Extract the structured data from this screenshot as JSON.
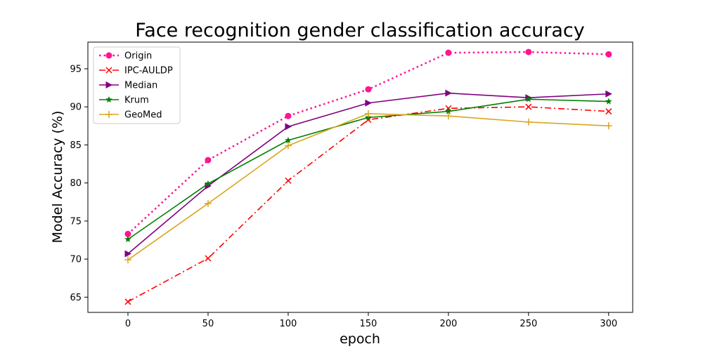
{
  "chart_data": {
    "type": "line",
    "title": "Face recognition gender classification accuracy",
    "xlabel": "epoch",
    "ylabel": "Model Accuracy (%)",
    "x": [
      0,
      50,
      100,
      150,
      200,
      250,
      300
    ],
    "xlim": [
      -25,
      315
    ],
    "ylim": [
      63,
      98.5
    ],
    "xticks": [
      0,
      50,
      100,
      150,
      200,
      250,
      300
    ],
    "yticks": [
      65,
      70,
      75,
      80,
      85,
      90,
      95
    ],
    "grid": false,
    "legend_position": "top-left",
    "series": [
      {
        "name": "Origin",
        "values": [
          73.3,
          83.0,
          88.8,
          92.3,
          97.1,
          97.2,
          96.9
        ],
        "color": "#ff1493",
        "linestyle": "dotted",
        "marker": "circle"
      },
      {
        "name": "IPC-AULDP",
        "values": [
          64.4,
          70.1,
          80.3,
          88.3,
          89.8,
          90.0,
          89.4
        ],
        "color": "#ff0000",
        "linestyle": "dashdot",
        "marker": "x"
      },
      {
        "name": "Median",
        "values": [
          70.7,
          79.6,
          87.4,
          90.5,
          91.8,
          91.2,
          91.7
        ],
        "color": "#800080",
        "linestyle": "solid",
        "marker": "triangle-right"
      },
      {
        "name": "Krum",
        "values": [
          72.6,
          79.9,
          85.6,
          88.6,
          89.4,
          91.0,
          90.7
        ],
        "color": "#008000",
        "linestyle": "solid",
        "marker": "star"
      },
      {
        "name": "GeoMed",
        "values": [
          69.9,
          77.3,
          84.9,
          89.1,
          88.8,
          88.0,
          87.5
        ],
        "color": "#daa520",
        "linestyle": "solid",
        "marker": "plus"
      }
    ]
  }
}
